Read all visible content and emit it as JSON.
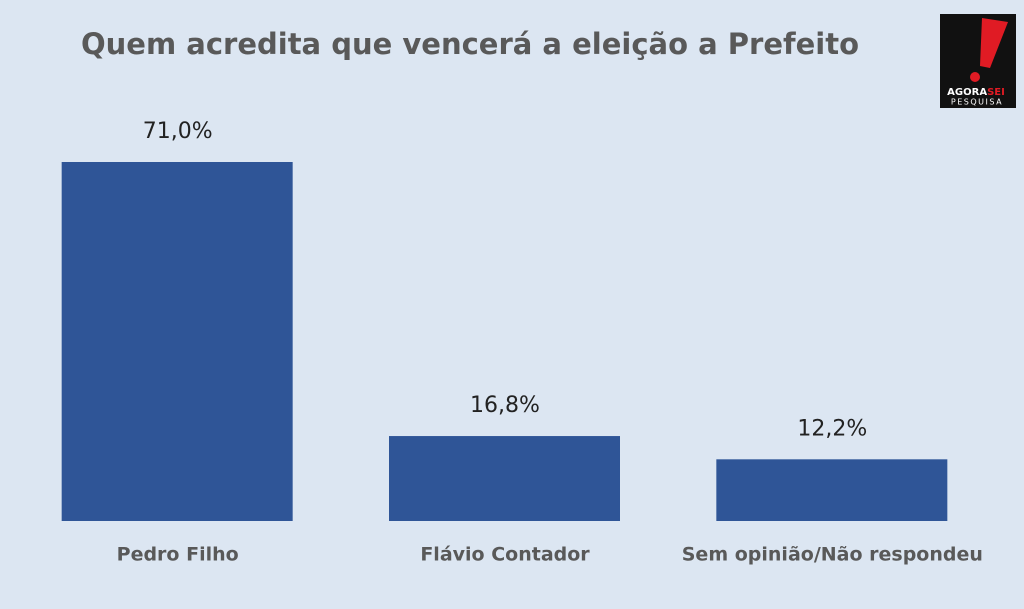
{
  "chart_data": {
    "type": "bar",
    "title": "Quem acredita que vencerá a eleição a Prefeito",
    "categories": [
      "Pedro Filho",
      "Flávio Contador",
      "Sem opinião/Não respondeu"
    ],
    "values": [
      71.0,
      16.8,
      12.2
    ],
    "value_labels": [
      "71,0%",
      "16,8%",
      "12,2%"
    ],
    "color": "#2f5597"
  },
  "logo": {
    "brand": "AGORA",
    "brand_accent": "SEI",
    "tagline": "PESQUISA"
  }
}
